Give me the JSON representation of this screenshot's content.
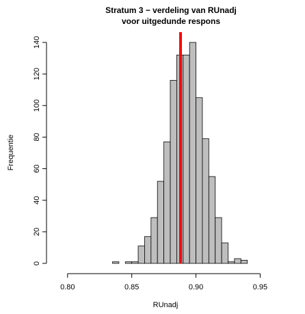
{
  "chart_data": {
    "type": "histogram",
    "title": "Stratum 3 − verdeling van RUnadj",
    "subtitle": "voor uitgedunde respons",
    "x_label": "RUnadj",
    "y_label": "Frequentie",
    "bins": [
      0.835,
      0.84,
      0.845,
      0.85,
      0.855,
      0.86,
      0.865,
      0.87,
      0.875,
      0.88,
      0.885,
      0.89,
      0.895,
      0.9,
      0.905,
      0.91,
      0.915,
      0.92,
      0.925,
      0.93,
      0.935,
      0.94
    ],
    "counts": [
      1,
      0,
      1,
      1,
      11,
      17,
      29,
      52,
      77,
      116,
      132,
      132,
      140,
      105,
      79,
      55,
      29,
      13,
      1,
      3,
      2
    ],
    "color": "#bebebe",
    "vline": {
      "value": 0.888,
      "color": "#ff0000"
    },
    "xlim": [
      0.79,
      0.97
    ],
    "ylim": [
      0,
      140
    ],
    "xticks": [
      {
        "value": 0.8,
        "label": "0.80"
      },
      0.85,
      {
        "value": 0.9,
        "label": "0.90"
      },
      0.95
    ],
    "yticks": [
      0,
      20,
      40,
      60,
      80,
      100,
      120,
      140
    ]
  }
}
